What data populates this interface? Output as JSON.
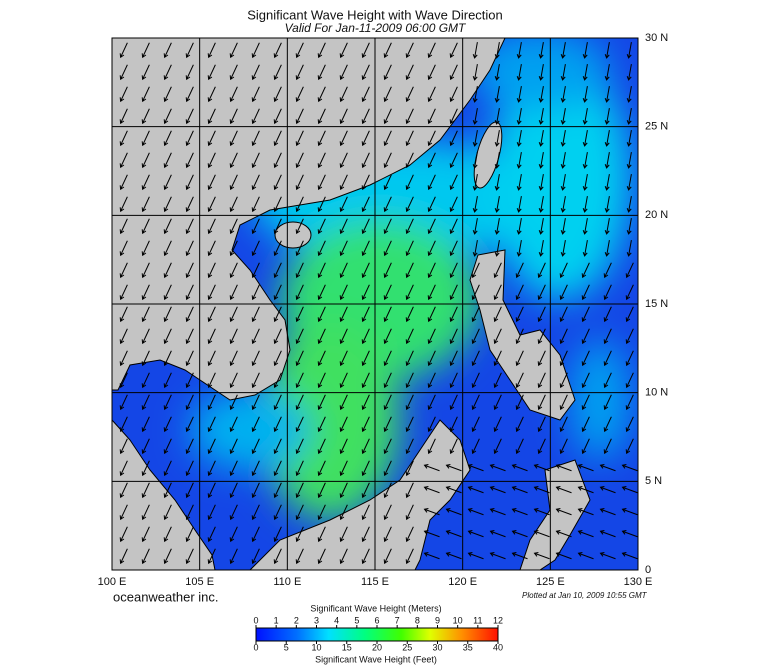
{
  "title": "Significant Wave Height with Wave Direction",
  "subtitle": "Valid For Jan-11-2009 06:00 GMT",
  "map": {
    "lonlim": [
      100,
      130
    ],
    "latlim": [
      0,
      30
    ],
    "lon_ticks": [
      {
        "value": 100,
        "label": "100 E"
      },
      {
        "value": 105,
        "label": "105 E"
      },
      {
        "value": 110,
        "label": "110 E"
      },
      {
        "value": 115,
        "label": "115 E"
      },
      {
        "value": 120,
        "label": "120 E"
      },
      {
        "value": 125,
        "label": "125 E"
      },
      {
        "value": 130,
        "label": "130 E"
      }
    ],
    "lat_ticks": [
      {
        "value": 0,
        "label": "0"
      },
      {
        "value": 5,
        "label": "5 N"
      },
      {
        "value": 10,
        "label": "10 N"
      },
      {
        "value": 15,
        "label": "15 N"
      },
      {
        "value": 20,
        "label": "20 N"
      },
      {
        "value": 25,
        "label": "25 N"
      },
      {
        "value": 30,
        "label": "30 N"
      }
    ]
  },
  "credit": "oceanweather inc.",
  "plotted": "Plotted at Jan 10, 2009 10:55 GMT",
  "colorbar": {
    "meters_title": "Significant Wave Height (Meters)",
    "meters_lim": [
      0,
      12
    ],
    "meters_ticks": [
      0,
      1,
      2,
      3,
      4,
      5,
      6,
      7,
      8,
      9,
      10,
      11,
      12
    ],
    "feet_title": "Significant Wave Height (Feet)",
    "feet_lim": [
      0,
      40
    ],
    "feet_ticks": [
      0,
      5,
      10,
      15,
      20,
      25,
      30,
      35,
      40
    ]
  }
}
